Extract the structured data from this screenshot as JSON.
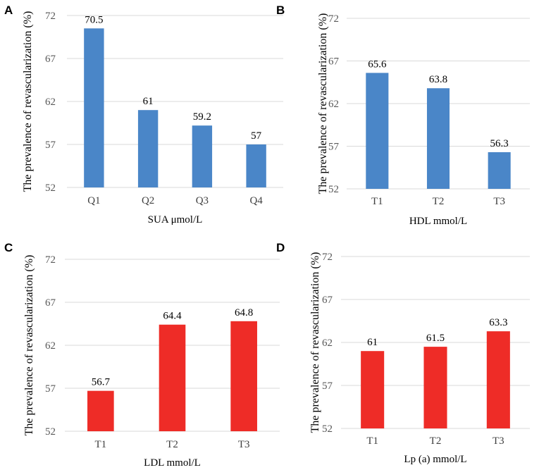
{
  "chart_data": [
    {
      "panel": "A",
      "type": "bar",
      "title": "",
      "categories": [
        "Q1",
        "Q2",
        "Q3",
        "Q4"
      ],
      "values": [
        70.5,
        61,
        59.2,
        57
      ],
      "xlabel": "SUA μmol/L",
      "ylabel": "The prevalence of revascularization (%)",
      "ylim": [
        52,
        72
      ],
      "yticks": [
        52,
        57,
        62,
        67,
        72
      ],
      "color": "#4a86c8",
      "grid": true
    },
    {
      "panel": "B",
      "type": "bar",
      "title": "",
      "categories": [
        "T1",
        "T2",
        "T3"
      ],
      "values": [
        65.6,
        63.8,
        56.3
      ],
      "xlabel": "HDL mmol/L",
      "ylabel": "The prevalence of revascularization (%)",
      "ylim": [
        52,
        72
      ],
      "yticks": [
        52,
        57,
        62,
        67,
        72
      ],
      "color": "#4a86c8",
      "grid": true
    },
    {
      "panel": "C",
      "type": "bar",
      "title": "",
      "categories": [
        "T1",
        "T2",
        "T3"
      ],
      "values": [
        56.7,
        64.4,
        64.8
      ],
      "xlabel": "LDL mmol/L",
      "ylabel": "The prevalence of revascularization (%)",
      "ylim": [
        52,
        72
      ],
      "yticks": [
        52,
        57,
        62,
        67,
        72
      ],
      "color": "#ee2c27",
      "grid": true
    },
    {
      "panel": "D",
      "type": "bar",
      "title": "",
      "categories": [
        "T1",
        "T2",
        "T3"
      ],
      "values": [
        61,
        61.5,
        63.3
      ],
      "xlabel": "Lp (a) mmol/L",
      "ylabel": "The prevalence of revascularization (%)",
      "ylim": [
        52,
        72
      ],
      "yticks": [
        52,
        57,
        62,
        67,
        72
      ],
      "color": "#ee2c27",
      "grid": true
    }
  ]
}
